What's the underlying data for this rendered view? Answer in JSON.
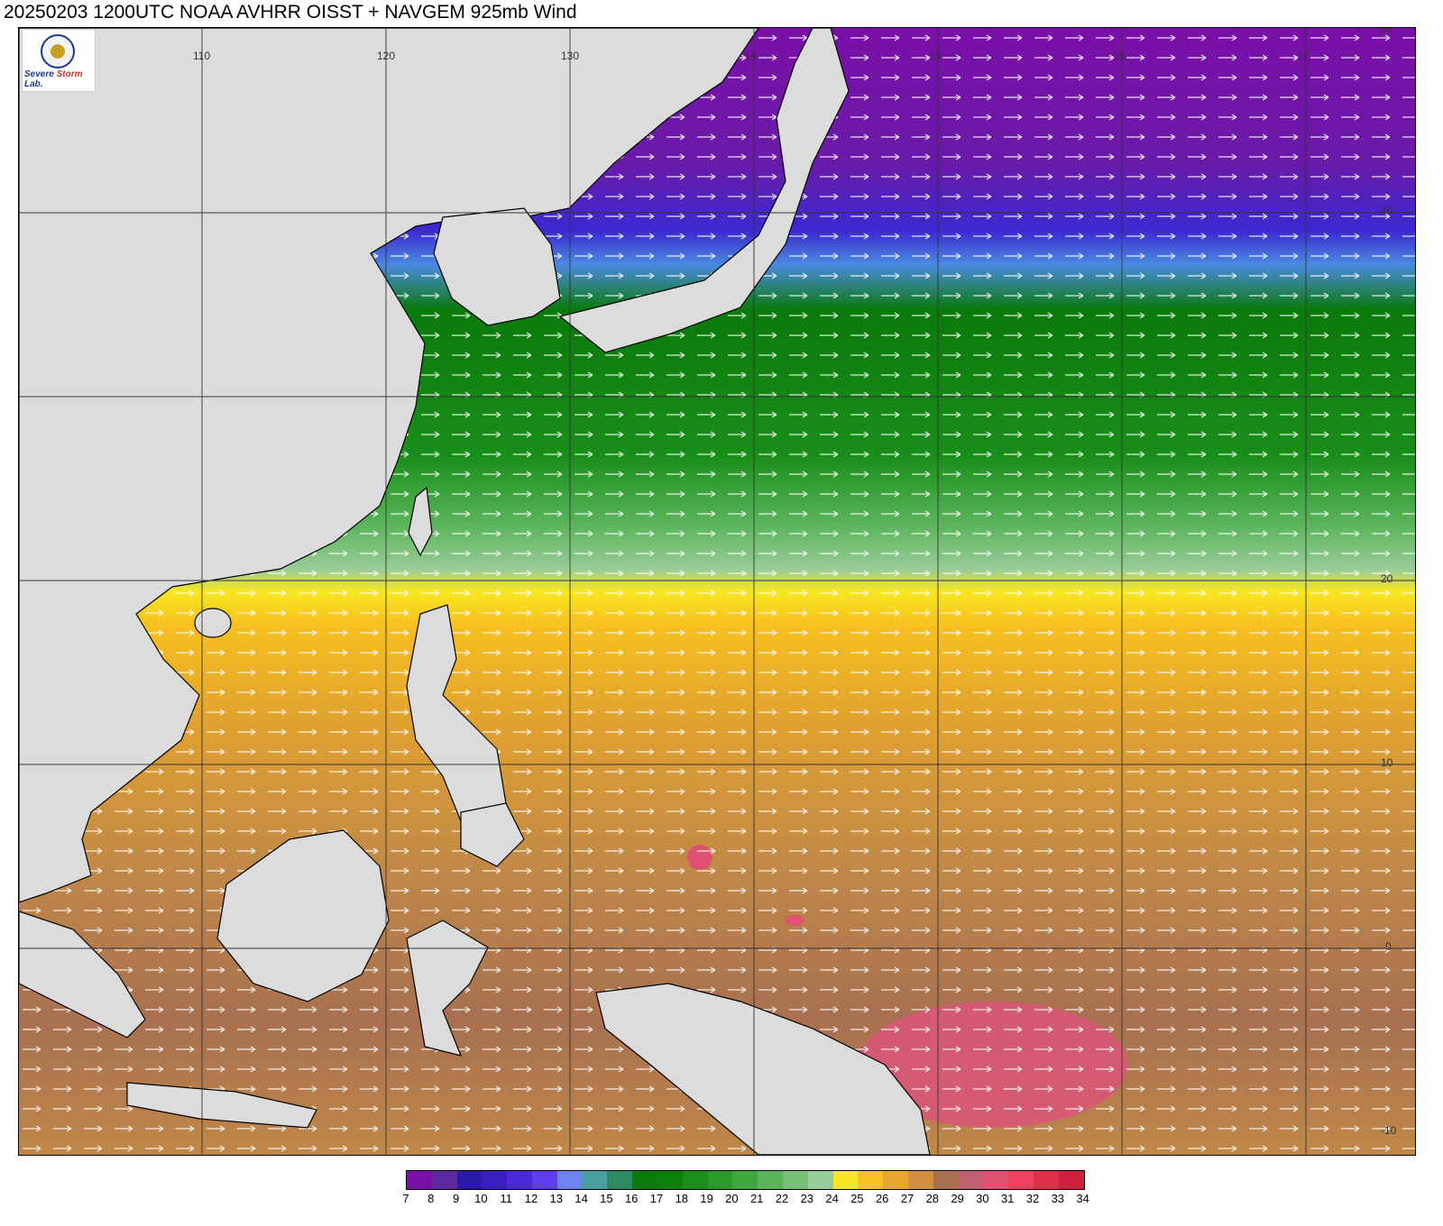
{
  "title": "20250203 1200UTC NOAA AVHRR OISST + NAVGEM 925mb Wind",
  "logo": {
    "text_a": "Severe",
    "text_b": "Storm",
    "text_c": "Lab."
  },
  "map": {
    "lon_labels": [
      "110",
      "120",
      "130",
      "14",
      "15",
      "16",
      "17"
    ],
    "lat_labels": [
      "50",
      "40",
      "20",
      "10",
      "0",
      "-10"
    ],
    "colors": {
      "land": "#dcdcdc",
      "border": "#000000",
      "grid": "#333333"
    }
  },
  "colorbar": {
    "ticks": [
      "7",
      "8",
      "9",
      "10",
      "11",
      "12",
      "13",
      "14",
      "15",
      "16",
      "17",
      "18",
      "19",
      "20",
      "21",
      "22",
      "23",
      "24",
      "25",
      "26",
      "27",
      "28",
      "29",
      "30",
      "31",
      "32",
      "33",
      "34"
    ],
    "colors": [
      "#7a0fa8",
      "#5a2a9e",
      "#2a1aa8",
      "#3a1ec0",
      "#4a2ad8",
      "#5f3ef0",
      "#6f82f4",
      "#4aa0a0",
      "#2e8a62",
      "#0a7a0a",
      "#0a820a",
      "#1a8e1a",
      "#2a9a2a",
      "#3ea83e",
      "#5ab45a",
      "#78c078",
      "#98cc98",
      "#f8e820",
      "#f8c020",
      "#e8a830",
      "#d09040",
      "#a87050",
      "#c06070",
      "#e05070",
      "#f04060",
      "#e03048",
      "#d02040"
    ],
    "unit_ticks_shown": true
  }
}
